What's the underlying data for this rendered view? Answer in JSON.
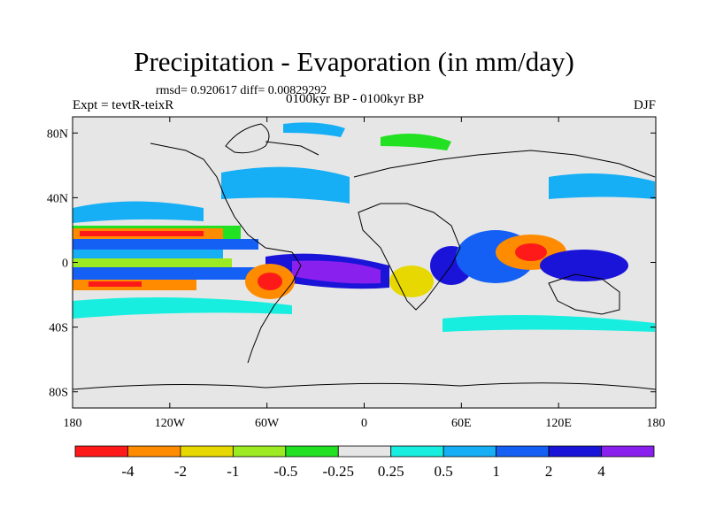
{
  "header": {
    "title": "Precipitation - Evaporation (in mm/day)",
    "stats": "rmsd= 0.920617 diff= 0.00829292",
    "experiment": "Expt = tevtR-teixR",
    "period": "0100kyr BP - 0100kyr BP",
    "season": "DJF"
  },
  "map": {
    "projection": "cylindrical-equidistant",
    "lon_range": [
      -180,
      180
    ],
    "lat_range": [
      -90,
      90
    ],
    "lon_ticks": [
      {
        "value": -180,
        "label": "180"
      },
      {
        "value": -120,
        "label": "120W"
      },
      {
        "value": -60,
        "label": "60W"
      },
      {
        "value": 0,
        "label": "0"
      },
      {
        "value": 60,
        "label": "60E"
      },
      {
        "value": 120,
        "label": "120E"
      },
      {
        "value": 180,
        "label": "180"
      }
    ],
    "lat_ticks": [
      {
        "value": 80,
        "label": "80N"
      },
      {
        "value": 40,
        "label": "40N"
      },
      {
        "value": 0,
        "label": "0"
      },
      {
        "value": -40,
        "label": "40S"
      },
      {
        "value": -80,
        "label": "80S"
      }
    ],
    "background_color": "#e6e6e6",
    "coastline_color": "#000000"
  },
  "colorbar": {
    "colors": [
      "#ff1a1a",
      "#ff8c00",
      "#e6d800",
      "#9bea22",
      "#22e022",
      "#e6e6e6",
      "#18eedf",
      "#16aef5",
      "#1460f5",
      "#1a14d8",
      "#8a20ee"
    ],
    "labels": [
      "-4",
      "-2",
      "-1",
      "-0.5",
      "-0.25",
      "0.25",
      "0.5",
      "1",
      "2",
      "4"
    ]
  }
}
